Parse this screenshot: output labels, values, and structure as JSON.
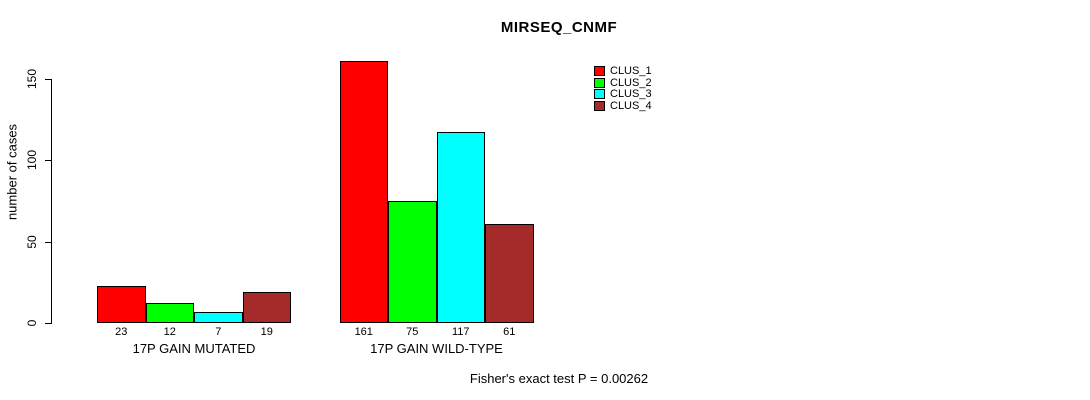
{
  "figure": {
    "title": "MIRSEQ_CNMF",
    "y_axis_label": "number of cases",
    "footer": "Fisher's exact test P = 0.00262"
  },
  "chart_data": {
    "type": "bar",
    "title": "MIRSEQ_CNMF",
    "xlabel": "",
    "ylabel": "number of cases",
    "categories": [
      "17P GAIN MUTATED",
      "17P GAIN WILD-TYPE"
    ],
    "series": [
      {
        "name": "CLUS_1",
        "color": "#ff0000",
        "values": [
          23,
          161
        ]
      },
      {
        "name": "CLUS_2",
        "color": "#00ff00",
        "values": [
          12,
          75
        ]
      },
      {
        "name": "CLUS_3",
        "color": "#00ffff",
        "values": [
          7,
          117
        ]
      },
      {
        "name": "CLUS_4",
        "color": "#a52a2a",
        "values": [
          19,
          61
        ]
      }
    ],
    "bar_value_labels": [
      [
        "23",
        "12",
        "7",
        "19"
      ],
      [
        "161",
        "75",
        "117",
        "61"
      ]
    ],
    "yticks": [
      "0",
      "50",
      "100",
      "150"
    ],
    "ylim": [
      0,
      165
    ],
    "grid": false,
    "legend_position": "top-right",
    "legend_entries": [
      "CLUS_1",
      "CLUS_2",
      "CLUS_3",
      "CLUS_4"
    ],
    "annotation": "Fisher's exact test P = 0.00262"
  }
}
